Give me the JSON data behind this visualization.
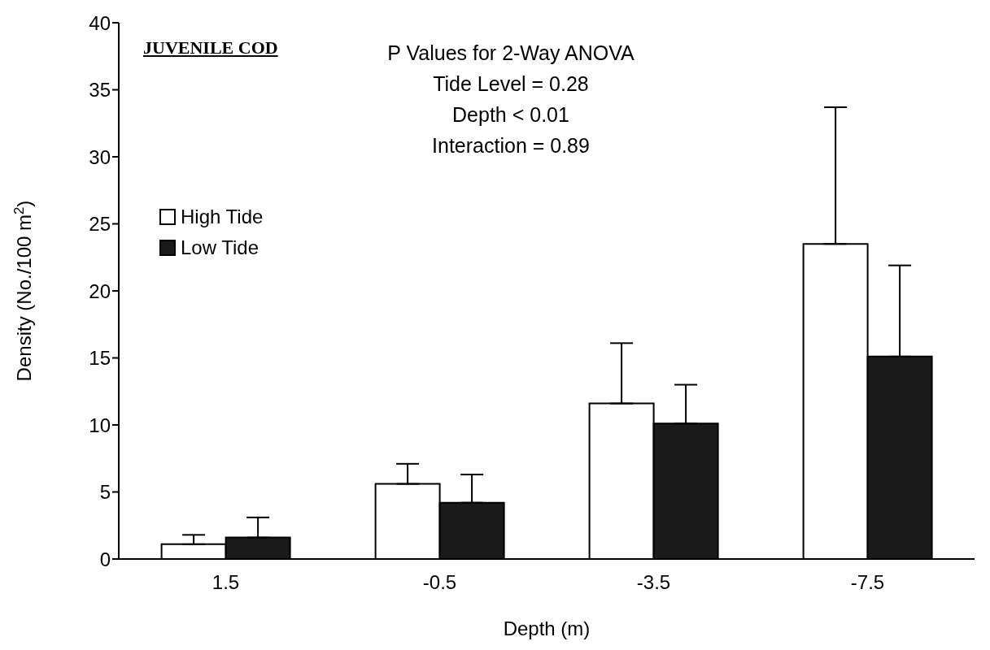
{
  "chart_data": {
    "type": "bar",
    "xlabel": "Depth (m)",
    "ylabel": "Density (No./100 m$^{2}$)",
    "categories": [
      "1.5",
      "-0.5",
      "-3.5",
      "-7.5"
    ],
    "series": [
      {
        "name": "High Tide",
        "color": "#ffffff",
        "values": [
          1.1,
          5.6,
          11.6,
          23.5
        ],
        "errors": [
          [
            1.1,
            1.8
          ],
          [
            5.6,
            7.1
          ],
          [
            11.6,
            16.1
          ],
          [
            23.5,
            33.7
          ]
        ]
      },
      {
        "name": "Low Tide",
        "color": "#1a1a1a",
        "values": [
          1.6,
          4.2,
          10.1,
          15.1
        ],
        "errors": [
          [
            1.6,
            3.1
          ],
          [
            4.2,
            6.3
          ],
          [
            10.1,
            13.0
          ],
          [
            15.1,
            21.9
          ]
        ]
      }
    ],
    "ylim": [
      0,
      40
    ],
    "yticks": [
      0,
      5,
      10,
      15,
      20,
      25,
      30,
      35,
      40
    ],
    "grid": false,
    "legend": "top left",
    "annotations": [
      "JUVENILE COD",
      "P Values for 2-Way ANOVA",
      "Tide Level = 0.28",
      "Depth < 0.01",
      "Interaction = 0.89"
    ]
  }
}
